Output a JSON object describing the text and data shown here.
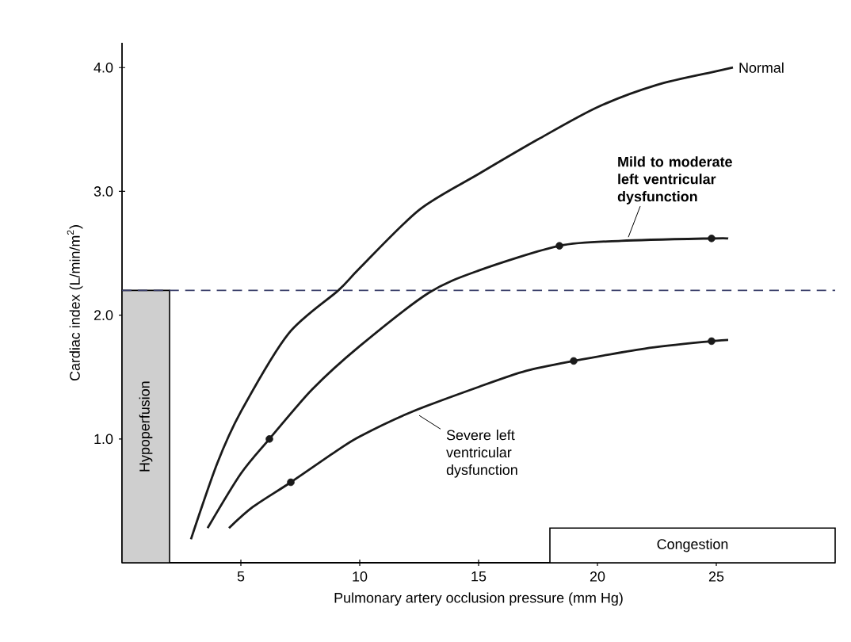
{
  "chart_data": {
    "type": "line",
    "xlabel": "Pulmonary artery occlusion pressure (mm Hg)",
    "ylabel": "Cardiac index (L/min/m$^{2}$)",
    "xlim": [
      0,
      30
    ],
    "ylim": [
      0,
      4.2
    ],
    "xticks": [
      5,
      10,
      15,
      20,
      25
    ],
    "yticks": [
      {
        "value": 1,
        "label": "1.0"
      },
      {
        "value": 2,
        "label": "2.0"
      },
      {
        "value": 3,
        "label": "3.0"
      },
      {
        "value": 4,
        "label": "4.0"
      }
    ],
    "line_style": "solid",
    "series": [
      {
        "name": "Normal",
        "color": "#1a1a1a",
        "x": [
          2.9,
          4,
          5,
          7,
          9.1,
          10,
          12.5,
          15,
          17.5,
          20,
          22.5,
          25,
          25.7
        ],
        "values": [
          0.19,
          0.8,
          1.22,
          1.85,
          2.2,
          2.38,
          2.85,
          3.14,
          3.42,
          3.68,
          3.86,
          3.97,
          4.0
        ]
      },
      {
        "name": "Mild to moderate left ventricular dysfunction",
        "color": "#1a1a1a",
        "x": [
          3.6,
          5,
          6.2,
          8,
          10,
          12.9,
          15,
          18.4,
          21,
          24.8,
          25.5
        ],
        "values": [
          0.28,
          0.72,
          1.0,
          1.4,
          1.75,
          2.18,
          2.36,
          2.56,
          2.6,
          2.62,
          2.62
        ]
      },
      {
        "name": "Severe left ventricular dysfunction",
        "color": "#1a1a1a",
        "x": [
          4.5,
          5.5,
          7.1,
          9,
          10,
          12.2,
          15,
          17,
          19,
          22,
          24.8,
          25.5
        ],
        "values": [
          0.28,
          0.45,
          0.65,
          0.9,
          1.02,
          1.22,
          1.42,
          1.55,
          1.63,
          1.73,
          1.79,
          1.8
        ]
      },
      {
        "type": "scatter",
        "marker": "circle",
        "color": "#1a1a1a",
        "x": [
          6.2,
          18.4,
          24.8,
          7.1,
          19,
          24.8
        ],
        "values": [
          1.0,
          2.56,
          2.62,
          0.65,
          1.63,
          1.79
        ]
      }
    ],
    "ref_lines": [
      {
        "axis": "y",
        "value": 2.2,
        "color": "#3a3f6a",
        "line_style": "dashed"
      }
    ],
    "bands": [
      {
        "axis": "x",
        "from": 0,
        "to": 2,
        "label": "Hypoperfusion",
        "color": "#cfcfcf"
      },
      {
        "axis": "x",
        "from": 18,
        "to": 30,
        "label": "Congestion",
        "color": "#ffffff"
      }
    ]
  }
}
